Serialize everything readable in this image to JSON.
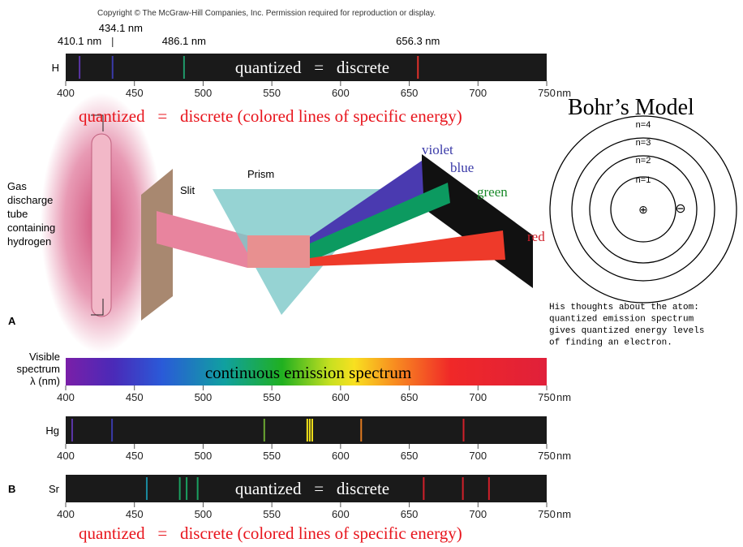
{
  "copyright": "Copyright © The McGraw-Hill Companies, Inc. Permission required for reproduction or display.",
  "axis": {
    "ticks": [
      400,
      450,
      500,
      550,
      600,
      650,
      700,
      750
    ],
    "unit": "nm",
    "range": [
      400,
      750
    ]
  },
  "hydrogen": {
    "label": "H",
    "overlay": "quantized   =   discrete",
    "lines": [
      {
        "value": 410.1,
        "label": "410.1 nm",
        "color": "#5b35a8"
      },
      {
        "value": 434.1,
        "label": "434.1 nm",
        "color": "#3a3aa8"
      },
      {
        "value": 486.1,
        "label": "486.1 nm",
        "color": "#1f9a6a"
      },
      {
        "value": 656.3,
        "label": "656.3 nm",
        "color": "#e0302a"
      }
    ]
  },
  "caption_top": "quantized   =   discrete (colored lines of specific energy)",
  "apparatus": {
    "tube": [
      "Gas",
      "discharge",
      "tube",
      "containing",
      "hydrogen"
    ],
    "slit": "Slit",
    "prism": "Prism",
    "violet": "violet",
    "blue": "blue",
    "green": "green",
    "red": "red",
    "panel": "A"
  },
  "bohr": {
    "title": "Bohr’s Model",
    "levels": [
      "n=4",
      "n=3",
      "n=2",
      "n=1"
    ],
    "nucleus": "⊕",
    "electron": "⊖",
    "note": [
      "His thoughts about the atom:",
      "quantized emission spectrum",
      "gives quantized energy levels",
      "of finding an electron."
    ]
  },
  "visible": {
    "label": [
      "Visible",
      "spectrum",
      "λ (nm)"
    ],
    "overlay": "continuous emission spectrum"
  },
  "mercury": {
    "label": "Hg",
    "lines": [
      {
        "value": 404.7,
        "color": "#5b35a8"
      },
      {
        "value": 433.7,
        "color": "#3a3aa8"
      },
      {
        "value": 544.5,
        "color": "#6aa832"
      },
      {
        "value": 575.8,
        "color": "#f2e21a"
      },
      {
        "value": 577.6,
        "color": "#f2e21a"
      },
      {
        "value": 579.4,
        "color": "#f2e21a"
      },
      {
        "value": 615,
        "color": "#e07a20"
      },
      {
        "value": 689.5,
        "color": "#d0202a"
      }
    ]
  },
  "strontium": {
    "label": "Sr",
    "panel": "B",
    "overlay": "quantized   =   discrete",
    "lines": [
      {
        "value": 459,
        "color": "#1a8aa0"
      },
      {
        "value": 483,
        "color": "#1aa060"
      },
      {
        "value": 488,
        "color": "#1aa060"
      },
      {
        "value": 496,
        "color": "#1aa060"
      },
      {
        "value": 660.5,
        "color": "#d0202a"
      },
      {
        "value": 689,
        "color": "#d0202a"
      },
      {
        "value": 708,
        "color": "#d0202a"
      }
    ]
  },
  "caption_bottom": "quantized   =   discrete (colored lines of specific energy)"
}
